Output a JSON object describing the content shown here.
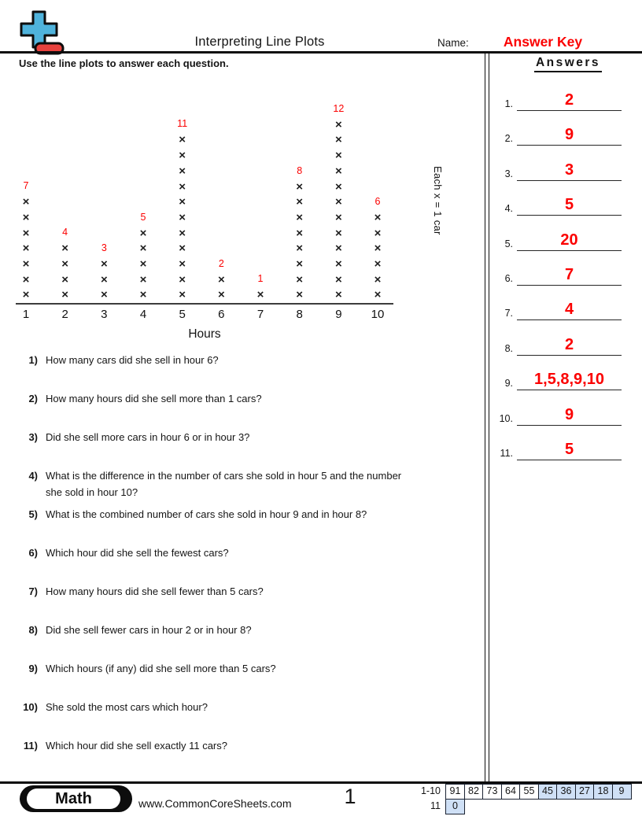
{
  "header": {
    "title": "Interpreting Line Plots",
    "name_label": "Name:",
    "answer_key_label": "Answer Key",
    "logo": {
      "name": "plus-minus-logo",
      "plus_color": "#4fb3dc",
      "minus_color": "#e8423e"
    }
  },
  "instructions": "Use the line plots to answer each question.",
  "chart_data": {
    "type": "line_plot",
    "symbol": "×",
    "categories": [
      "1",
      "2",
      "3",
      "4",
      "5",
      "6",
      "7",
      "8",
      "9",
      "10"
    ],
    "values": [
      7,
      4,
      3,
      5,
      11,
      2,
      1,
      8,
      12,
      6
    ],
    "count_labels": [
      "7",
      "4",
      "3",
      "5",
      "11",
      "2",
      "1",
      "8",
      "12",
      "6"
    ],
    "xlabel": "Hours",
    "legend": "Each x = 1 car",
    "count_label_color": "#fb0000",
    "mark_color": "#1d1d1d",
    "axis_range": [
      "1",
      "10"
    ]
  },
  "questions": [
    {
      "num": "1)",
      "text": "How many cars did she sell in hour 6?"
    },
    {
      "num": "2)",
      "text": "How many hours did she sell more than 1 cars?"
    },
    {
      "num": "3)",
      "text": "Did she sell more cars in hour 6 or in hour 3?"
    },
    {
      "num": "4)",
      "text": "What is the difference in the number of cars she sold in hour 5 and the number\nshe sold in hour 10?"
    },
    {
      "num": "5)",
      "text": "What is the combined number of cars she sold in hour 9 and in hour 8?"
    },
    {
      "num": "6)",
      "text": "Which hour did she sell the fewest cars?"
    },
    {
      "num": "7)",
      "text": "How many hours did she sell fewer than 5 cars?"
    },
    {
      "num": "8)",
      "text": "Did she sell fewer cars in hour 2 or in hour 8?"
    },
    {
      "num": "9)",
      "text": "Which hours (if any) did she sell more than 5 cars?"
    },
    {
      "num": "10)",
      "text": "She sold the most cars which hour?"
    },
    {
      "num": "11)",
      "text": "Which hour did she sell exactly 11 cars?"
    }
  ],
  "answers_panel": {
    "heading": "Answers",
    "answer_color": "#fb0000",
    "items": [
      {
        "num": "1.",
        "value": "2"
      },
      {
        "num": "2.",
        "value": "9"
      },
      {
        "num": "3.",
        "value": "3"
      },
      {
        "num": "4.",
        "value": "5"
      },
      {
        "num": "5.",
        "value": "20"
      },
      {
        "num": "6.",
        "value": "7"
      },
      {
        "num": "7.",
        "value": "4"
      },
      {
        "num": "8.",
        "value": "2"
      },
      {
        "num": "9.",
        "value": "1,5,8,9,10"
      },
      {
        "num": "10.",
        "value": "9"
      },
      {
        "num": "11.",
        "value": "5"
      }
    ]
  },
  "footer": {
    "subject_badge": "Math",
    "website": "www.CommonCoreSheets.com",
    "page_number": "1",
    "score_table": {
      "highlight_color": "#cfe0f6",
      "rows": [
        {
          "label": "1-10",
          "cells": [
            {
              "v": "91",
              "hl": false
            },
            {
              "v": "82",
              "hl": false
            },
            {
              "v": "73",
              "hl": false
            },
            {
              "v": "64",
              "hl": false
            },
            {
              "v": "55",
              "hl": false
            },
            {
              "v": "45",
              "hl": true
            },
            {
              "v": "36",
              "hl": true
            },
            {
              "v": "27",
              "hl": true
            },
            {
              "v": "18",
              "hl": true
            },
            {
              "v": "9",
              "hl": true
            }
          ]
        },
        {
          "label": "11",
          "cells": [
            {
              "v": "0",
              "hl": true
            }
          ]
        }
      ]
    }
  }
}
